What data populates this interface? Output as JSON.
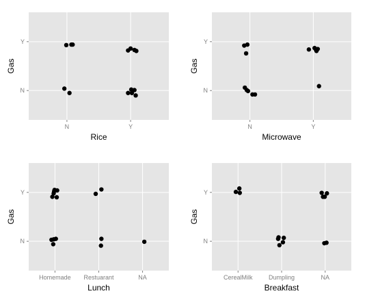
{
  "colors": {
    "panel_bg": "#e5e5e5",
    "grid": "#ffffff",
    "point": "#000000",
    "tick_text": "#7f7f7f",
    "tick_mark": "#7f7f7f"
  },
  "chart_data": [
    {
      "type": "scatter",
      "title": "",
      "xlabel": "Rice",
      "ylabel": "Gas",
      "x_categories": [
        "N",
        "Y"
      ],
      "y_categories": [
        "N",
        "Y"
      ],
      "points": [
        {
          "x": 0.99,
          "y": 1.93
        },
        {
          "x": 1.07,
          "y": 1.94
        },
        {
          "x": 1.09,
          "y": 1.94
        },
        {
          "x": 0.96,
          "y": 1.04
        },
        {
          "x": 1.04,
          "y": 0.95
        },
        {
          "x": 1.96,
          "y": 1.82
        },
        {
          "x": 2.0,
          "y": 1.86
        },
        {
          "x": 2.06,
          "y": 1.83
        },
        {
          "x": 2.09,
          "y": 1.81
        },
        {
          "x": 1.96,
          "y": 0.95
        },
        {
          "x": 2.01,
          "y": 1.02
        },
        {
          "x": 2.02,
          "y": 0.95
        },
        {
          "x": 2.06,
          "y": 1.01
        },
        {
          "x": 2.08,
          "y": 0.9
        }
      ]
    },
    {
      "type": "scatter",
      "title": "",
      "xlabel": "Microwave",
      "ylabel": "Gas",
      "x_categories": [
        "N",
        "Y"
      ],
      "y_categories": [
        "N",
        "Y"
      ],
      "points": [
        {
          "x": 0.91,
          "y": 1.92
        },
        {
          "x": 0.96,
          "y": 1.94
        },
        {
          "x": 0.94,
          "y": 1.76
        },
        {
          "x": 0.92,
          "y": 1.06
        },
        {
          "x": 0.95,
          "y": 1.01
        },
        {
          "x": 0.97,
          "y": 0.99
        },
        {
          "x": 1.04,
          "y": 0.92
        },
        {
          "x": 1.08,
          "y": 0.92
        },
        {
          "x": 1.93,
          "y": 1.84
        },
        {
          "x": 2.02,
          "y": 1.87
        },
        {
          "x": 2.04,
          "y": 1.84
        },
        {
          "x": 2.05,
          "y": 1.81
        },
        {
          "x": 2.07,
          "y": 1.85
        },
        {
          "x": 2.09,
          "y": 1.09
        }
      ]
    },
    {
      "type": "scatter",
      "title": "",
      "xlabel": "Lunch",
      "ylabel": "Gas",
      "x_categories": [
        "Homemade",
        "Restuarant",
        "NA"
      ],
      "y_categories": [
        "N",
        "Y"
      ],
      "points": [
        {
          "x": 0.94,
          "y": 1.91
        },
        {
          "x": 0.97,
          "y": 1.98
        },
        {
          "x": 0.99,
          "y": 2.05
        },
        {
          "x": 0.98,
          "y": 2.02
        },
        {
          "x": 1.04,
          "y": 1.9
        },
        {
          "x": 1.05,
          "y": 2.04
        },
        {
          "x": 0.92,
          "y": 1.03
        },
        {
          "x": 0.96,
          "y": 0.94
        },
        {
          "x": 0.97,
          "y": 1.04
        },
        {
          "x": 1.02,
          "y": 1.05
        },
        {
          "x": 1.93,
          "y": 1.97
        },
        {
          "x": 2.06,
          "y": 2.06
        },
        {
          "x": 2.05,
          "y": 0.91
        },
        {
          "x": 2.06,
          "y": 1.05
        },
        {
          "x": 3.04,
          "y": 0.99
        }
      ]
    },
    {
      "type": "scatter",
      "title": "",
      "xlabel": "Breakfast",
      "ylabel": "Gas",
      "x_categories": [
        "CerealMilk",
        "Dumpling",
        "NA"
      ],
      "y_categories": [
        "N",
        "Y"
      ],
      "points": [
        {
          "x": 0.95,
          "y": 2.01
        },
        {
          "x": 1.03,
          "y": 2.08
        },
        {
          "x": 1.04,
          "y": 1.99
        },
        {
          "x": 1.92,
          "y": 1.05
        },
        {
          "x": 1.93,
          "y": 1.08
        },
        {
          "x": 1.95,
          "y": 0.92
        },
        {
          "x": 2.05,
          "y": 1.07
        },
        {
          "x": 2.03,
          "y": 0.98
        },
        {
          "x": 2.92,
          "y": 1.99
        },
        {
          "x": 2.95,
          "y": 1.91
        },
        {
          "x": 2.99,
          "y": 1.91
        },
        {
          "x": 3.04,
          "y": 1.98
        },
        {
          "x": 2.98,
          "y": 0.96
        },
        {
          "x": 3.03,
          "y": 0.97
        }
      ]
    }
  ]
}
